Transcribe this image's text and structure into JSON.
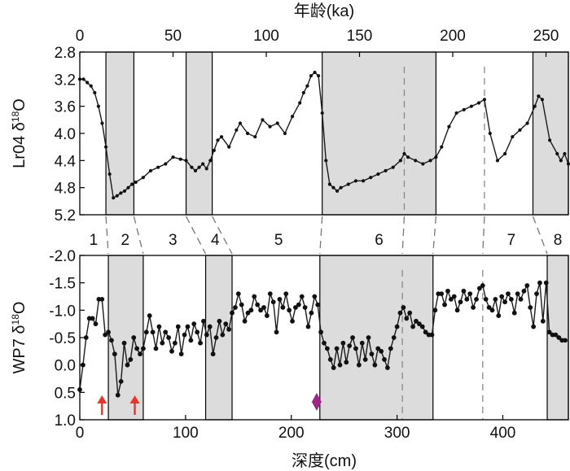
{
  "chart_data": [
    {
      "id": "top",
      "type": "line",
      "title": "",
      "xlabel": "年龄(ka)",
      "ylabel_main": "Lr04 δ",
      "ylabel_sup": "18",
      "ylabel_tail": "O",
      "xlim": [
        0,
        262
      ],
      "ylim": [
        2.8,
        5.2
      ],
      "y_inverted": true,
      "x_ticks": [
        0,
        50,
        100,
        150,
        200,
        250
      ],
      "y_ticks": [
        2.8,
        3.2,
        3.6,
        4.0,
        4.4,
        4.8,
        5.2
      ],
      "y_tick_labels": [
        "2.8",
        "3.2",
        "3.6",
        "4.0",
        "4.4",
        "4.8",
        "5.2"
      ],
      "shaded_bands": [
        [
          14,
          29
        ],
        [
          57,
          71
        ],
        [
          130,
          191
        ],
        [
          243,
          262
        ]
      ],
      "dashed_markers": [
        174,
        217
      ],
      "series": [
        {
          "x": [
            0,
            2,
            4,
            6,
            8,
            10,
            12,
            14,
            16,
            18,
            20,
            22,
            24,
            26,
            28,
            30,
            34,
            38,
            42,
            46,
            50,
            54,
            57,
            60,
            62,
            64,
            66,
            68,
            70,
            72,
            74,
            76,
            80,
            84,
            86,
            90,
            94,
            98,
            102,
            106,
            110,
            114,
            118,
            120,
            122,
            124,
            126,
            128,
            130,
            132,
            134,
            136,
            138,
            140,
            144,
            148,
            152,
            156,
            160,
            164,
            168,
            172,
            174,
            176,
            180,
            184,
            188,
            191,
            194,
            198,
            202,
            206,
            210,
            214,
            217,
            220,
            224,
            228,
            232,
            236,
            240,
            244,
            246,
            248,
            252,
            256,
            258,
            260,
            262
          ],
          "y": [
            3.2,
            3.2,
            3.25,
            3.3,
            3.4,
            3.6,
            3.85,
            4.2,
            4.6,
            4.95,
            4.92,
            4.88,
            4.85,
            4.8,
            4.75,
            4.72,
            4.65,
            4.55,
            4.5,
            4.45,
            4.35,
            4.38,
            4.4,
            4.5,
            4.55,
            4.5,
            4.45,
            4.52,
            4.4,
            4.25,
            4.1,
            4.05,
            4.2,
            3.95,
            3.85,
            4.0,
            4.05,
            3.8,
            3.9,
            3.85,
            4.0,
            3.75,
            3.55,
            3.4,
            3.3,
            3.15,
            3.1,
            3.15,
            3.7,
            4.4,
            4.75,
            4.8,
            4.85,
            4.8,
            4.75,
            4.7,
            4.7,
            4.65,
            4.6,
            4.55,
            4.5,
            4.4,
            4.3,
            4.35,
            4.4,
            4.45,
            4.4,
            4.35,
            4.2,
            3.9,
            3.7,
            3.65,
            3.6,
            3.55,
            3.5,
            4.0,
            4.4,
            4.3,
            4.05,
            3.95,
            3.85,
            3.6,
            3.45,
            3.5,
            4.1,
            4.3,
            4.4,
            4.3,
            4.45
          ]
        }
      ]
    },
    {
      "id": "bottom",
      "type": "line",
      "title": "",
      "xlabel": "深度(cm)",
      "ylabel_main": "WP7 δ",
      "ylabel_sup": "18",
      "ylabel_tail": "O",
      "xlim": [
        0,
        462
      ],
      "ylim": [
        -2.0,
        1.0
      ],
      "y_inverted": true,
      "x_ticks": [
        0,
        100,
        200,
        300,
        400
      ],
      "y_ticks": [
        -2.0,
        -1.5,
        -1.0,
        -0.5,
        0.0,
        0.5,
        1.0
      ],
      "y_tick_labels": [
        "-2.0",
        "-1.5",
        "-1.0",
        "-0.5",
        "0.0",
        "0.5",
        "1.0"
      ],
      "shaded_bands": [
        [
          27,
          60
        ],
        [
          119,
          144
        ],
        [
          227,
          334
        ],
        [
          442,
          462
        ]
      ],
      "dashed_markers": [
        305,
        381
      ],
      "stage_labels": [
        {
          "text": "1",
          "x": 13
        },
        {
          "text": "2",
          "x": 43
        },
        {
          "text": "3",
          "x": 88
        },
        {
          "text": "4",
          "x": 128
        },
        {
          "text": "5",
          "x": 188
        },
        {
          "text": "6",
          "x": 283
        },
        {
          "text": "7",
          "x": 408
        },
        {
          "text": "8",
          "x": 452
        }
      ],
      "red_arrows": [
        {
          "x": 21
        },
        {
          "x": 52
        }
      ],
      "diamond_marker": {
        "x": 224,
        "color": "#a0278a"
      },
      "colors": {
        "arrow": "#e8352b",
        "band": "#dcdcdc",
        "line": "#1a1a1a"
      },
      "series": [
        {
          "x": [
            0,
            3,
            6,
            9,
            12,
            15,
            18,
            21,
            24,
            27,
            30,
            33,
            36,
            39,
            42,
            45,
            48,
            51,
            54,
            57,
            60,
            63,
            66,
            69,
            72,
            75,
            78,
            81,
            84,
            87,
            90,
            93,
            96,
            99,
            102,
            105,
            108,
            111,
            114,
            117,
            120,
            123,
            126,
            129,
            132,
            135,
            138,
            141,
            144,
            147,
            150,
            153,
            156,
            159,
            162,
            165,
            168,
            171,
            174,
            177,
            180,
            183,
            186,
            189,
            192,
            195,
            198,
            201,
            204,
            207,
            210,
            213,
            216,
            219,
            222,
            225,
            228,
            231,
            234,
            237,
            240,
            243,
            246,
            249,
            252,
            255,
            258,
            261,
            264,
            267,
            270,
            273,
            276,
            279,
            282,
            285,
            288,
            291,
            294,
            297,
            300,
            303,
            306,
            309,
            312,
            315,
            318,
            321,
            324,
            327,
            330,
            333,
            336,
            339,
            342,
            345,
            348,
            351,
            354,
            357,
            360,
            363,
            366,
            369,
            372,
            375,
            378,
            381,
            384,
            387,
            390,
            393,
            396,
            399,
            402,
            405,
            408,
            411,
            414,
            417,
            420,
            423,
            426,
            429,
            432,
            435,
            438,
            441,
            444,
            447,
            450,
            453,
            456,
            459
          ],
          "y": [
            0.45,
            0.0,
            -0.5,
            -0.85,
            -0.85,
            -0.75,
            -1.2,
            -1.2,
            -0.55,
            -0.6,
            -0.45,
            -0.2,
            0.55,
            0.3,
            -0.4,
            0.0,
            -0.1,
            -0.5,
            -0.3,
            -0.2,
            -0.3,
            -0.6,
            -0.9,
            -0.6,
            -0.3,
            -0.7,
            -0.4,
            -0.6,
            -0.5,
            -0.25,
            -0.4,
            -0.7,
            -0.2,
            -0.55,
            -0.7,
            -0.45,
            -0.75,
            -0.6,
            -0.4,
            -0.8,
            -0.55,
            -0.7,
            -0.2,
            -0.5,
            -0.8,
            -0.55,
            -0.75,
            -0.65,
            -0.95,
            -1.05,
            -1.3,
            -1.1,
            -0.8,
            -0.95,
            -1.0,
            -1.25,
            -1.1,
            -1.0,
            -1.05,
            -0.9,
            -1.3,
            -1.15,
            -0.6,
            -1.2,
            -1.05,
            -1.3,
            -1.0,
            -0.8,
            -1.05,
            -1.1,
            -1.25,
            -1.05,
            -0.7,
            -0.95,
            -1.25,
            -1.1,
            -0.6,
            -0.4,
            -0.3,
            -0.1,
            0.05,
            -0.3,
            0.0,
            -0.4,
            -0.05,
            -0.35,
            -0.5,
            -0.3,
            0.0,
            -0.4,
            -0.1,
            -0.5,
            -0.2,
            0.0,
            -0.3,
            -0.25,
            -0.1,
            0.05,
            -0.3,
            -0.5,
            -0.7,
            -0.95,
            -1.05,
            -0.85,
            -0.95,
            -0.7,
            -0.8,
            -0.75,
            -0.7,
            -0.6,
            -0.55,
            -0.55,
            -1.0,
            -1.3,
            -1.3,
            -1.1,
            -1.35,
            -1.2,
            -1.25,
            -1.0,
            -1.15,
            -1.35,
            -1.2,
            -1.3,
            -1.05,
            -1.2,
            -1.4,
            -1.45,
            -1.2,
            -1.05,
            -1.0,
            -1.2,
            -0.9,
            -1.25,
            -1.15,
            -1.3,
            -1.2,
            -0.95,
            -1.3,
            -1.2,
            -1.35,
            -1.45,
            -1.05,
            -0.7,
            -1.3,
            -1.5,
            -0.8,
            -1.5,
            -0.6,
            -0.55,
            -0.55,
            -0.5,
            -0.45,
            -0.45
          ]
        }
      ]
    }
  ]
}
